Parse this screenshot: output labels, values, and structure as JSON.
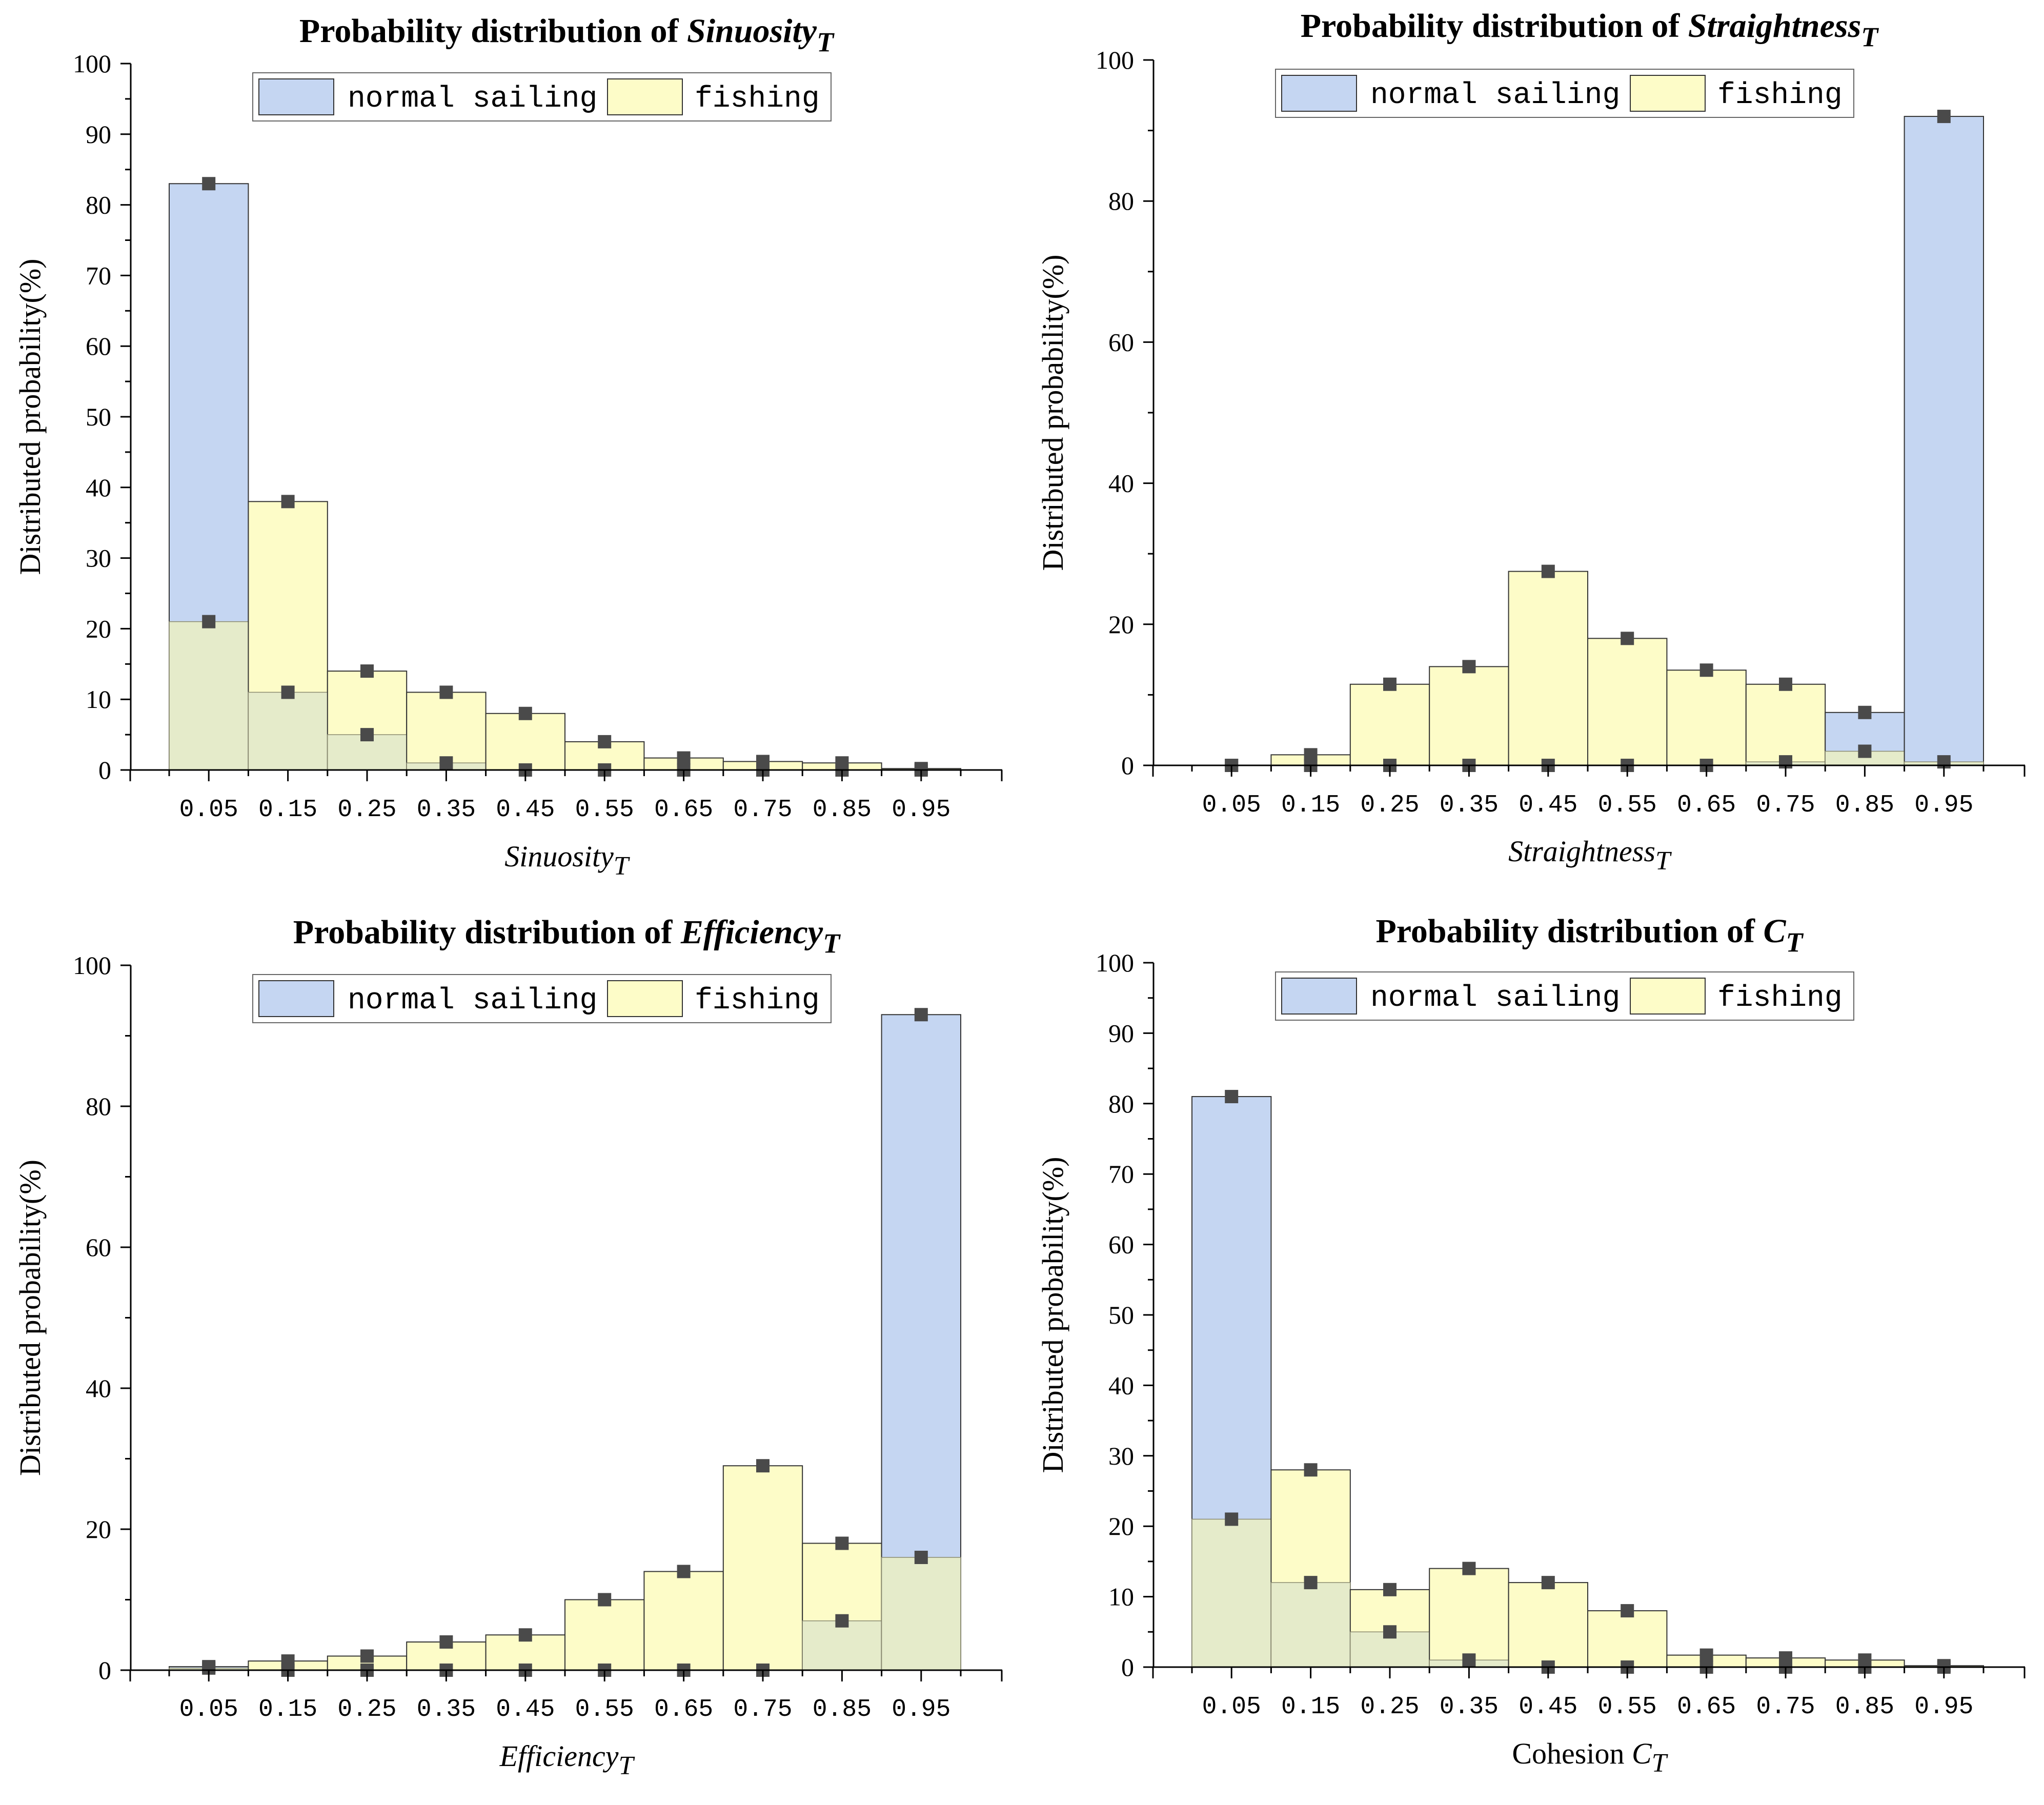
{
  "colors": {
    "normal": "#c5d6f2",
    "fishing": "#fdfcc8",
    "overlap": "#e5ebca",
    "axis": "#000000",
    "marker": "#4a4a4a"
  },
  "legend": {
    "normal_label": "normal sailing",
    "fishing_label": "fishing"
  },
  "chart_data": [
    {
      "type": "bar",
      "title_prefix": "Probability distribution of ",
      "title_var": "Sinuosity",
      "title_sub": "T",
      "xlabel_prefix": "",
      "xlabel_var": "Sinuosity",
      "xlabel_sub": "T",
      "ylabel": "Distributed probability(%)",
      "categories": [
        "0.05",
        "0.15",
        "0.25",
        "0.35",
        "0.45",
        "0.55",
        "0.65",
        "0.75",
        "0.85",
        "0.95"
      ],
      "yticks": [
        "0",
        "10",
        "20",
        "30",
        "40",
        "50",
        "60",
        "70",
        "80",
        "90",
        "100"
      ],
      "ylim": [
        0,
        100
      ],
      "series": [
        {
          "name": "normal sailing",
          "values": [
            83,
            11,
            5,
            1,
            0,
            0,
            0,
            0,
            0,
            0
          ]
        },
        {
          "name": "fishing",
          "values": [
            21,
            38,
            14,
            11,
            8,
            4,
            1.7,
            1.2,
            1,
            0.2
          ]
        }
      ]
    },
    {
      "type": "bar",
      "title_prefix": "Probability distribution of ",
      "title_var": "Straightness",
      "title_sub": "T",
      "xlabel_prefix": "",
      "xlabel_var": "Straightness",
      "xlabel_sub": "T",
      "ylabel": "Distributed probability(%)",
      "categories": [
        "0.05",
        "0.15",
        "0.25",
        "0.35",
        "0.45",
        "0.55",
        "0.65",
        "0.75",
        "0.85",
        "0.95"
      ],
      "yticks": [
        "0",
        "20",
        "40",
        "60",
        "80",
        "100"
      ],
      "ylim": [
        0,
        100
      ],
      "series": [
        {
          "name": "normal sailing",
          "values": [
            0,
            0,
            0,
            0,
            0,
            0,
            0,
            0.5,
            7.5,
            92
          ]
        },
        {
          "name": "fishing",
          "values": [
            0,
            1.5,
            11.5,
            14,
            27.5,
            18,
            13.5,
            11.5,
            2,
            0.5
          ]
        }
      ]
    },
    {
      "type": "bar",
      "title_prefix": "Probability distribution of ",
      "title_var": "Efficiency",
      "title_sub": "T",
      "xlabel_prefix": "",
      "xlabel_var": "Efficiency",
      "xlabel_sub": "T",
      "ylabel": "Distributed probability(%)",
      "categories": [
        "0.05",
        "0.15",
        "0.25",
        "0.35",
        "0.45",
        "0.55",
        "0.65",
        "0.75",
        "0.85",
        "0.95"
      ],
      "yticks": [
        "0",
        "20",
        "40",
        "60",
        "80",
        "100"
      ],
      "ylim": [
        0,
        100
      ],
      "series": [
        {
          "name": "normal sailing",
          "values": [
            0.5,
            0,
            0,
            0,
            0,
            0,
            0,
            0,
            7,
            93
          ]
        },
        {
          "name": "fishing",
          "values": [
            0.3,
            1.3,
            2,
            4,
            5,
            10,
            14,
            29,
            18,
            16
          ]
        }
      ]
    },
    {
      "type": "bar",
      "title_prefix": "Probability distribution of ",
      "title_var": "C",
      "title_sub": "T",
      "xlabel_prefix": "Cohesion ",
      "xlabel_var": "C",
      "xlabel_sub": "T",
      "ylabel": "Distributed probability(%)",
      "categories": [
        "0.05",
        "0.15",
        "0.25",
        "0.35",
        "0.45",
        "0.55",
        "0.65",
        "0.75",
        "0.85",
        "0.95"
      ],
      "yticks": [
        "0",
        "10",
        "20",
        "30",
        "40",
        "50",
        "60",
        "70",
        "80",
        "90",
        "100"
      ],
      "ylim": [
        0,
        100
      ],
      "series": [
        {
          "name": "normal sailing",
          "values": [
            81,
            12,
            5,
            1,
            0,
            0,
            0,
            0,
            0,
            0
          ]
        },
        {
          "name": "fishing",
          "values": [
            21,
            28,
            11,
            14,
            12,
            8,
            1.7,
            1.3,
            1,
            0.2
          ]
        }
      ]
    }
  ]
}
